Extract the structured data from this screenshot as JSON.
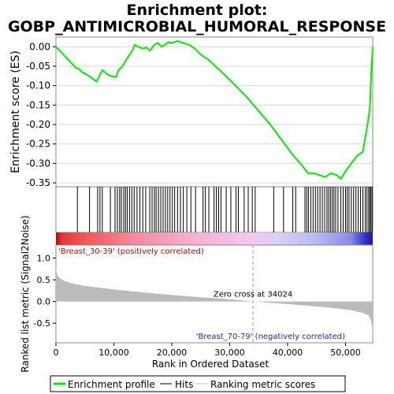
{
  "chart_data": {
    "type": "line",
    "title": "Enrichment plot:",
    "subtitle": "GOBP_ANTIMICROBIAL_HUMORAL_RESPONSE",
    "panels": {
      "enrichment": {
        "ylabel": "Enrichment score (ES)",
        "ylim": [
          -0.36,
          0.025
        ],
        "yticks": [
          0.0,
          -0.05,
          -0.1,
          -0.15,
          -0.2,
          -0.25,
          -0.3,
          -0.35
        ],
        "ytick_labels": [
          "0.00",
          "-0.05",
          "-0.10",
          "-0.15",
          "-0.20",
          "-0.25",
          "-0.30",
          "-0.35"
        ],
        "series": [
          {
            "name": "Enrichment profile",
            "color": "#00ee00",
            "x": [
              0,
              3500,
              3800,
              4500,
              5700,
              6600,
              7000,
              7500,
              8000,
              9000,
              9500,
              10400,
              10800,
              11500,
              12500,
              13200,
              13600,
              14200,
              15000,
              15600,
              16200,
              17000,
              17600,
              18200,
              18800,
              19400,
              20000,
              21000,
              21500,
              22000,
              23000,
              24000,
              25000,
              26500,
              27500,
              29000,
              31000,
              33000,
              35000,
              37000,
              39000,
              41000,
              42500,
              43500,
              44500,
              45500,
              46500,
              47500,
              48500,
              49200,
              50000,
              51000,
              52000,
              53000,
              53800,
              54200,
              54500,
              54700
            ],
            "y": [
              0.0,
              -0.055,
              -0.055,
              -0.065,
              -0.075,
              -0.085,
              -0.09,
              -0.075,
              -0.06,
              -0.072,
              -0.075,
              -0.078,
              -0.06,
              -0.05,
              -0.025,
              -0.01,
              0.005,
              0.0,
              -0.005,
              -0.002,
              -0.01,
              0.005,
              0.01,
              0.0,
              0.005,
              0.012,
              0.01,
              0.015,
              0.012,
              0.01,
              0.005,
              -0.005,
              -0.02,
              -0.035,
              -0.05,
              -0.07,
              -0.1,
              -0.13,
              -0.165,
              -0.2,
              -0.24,
              -0.28,
              -0.305,
              -0.325,
              -0.325,
              -0.33,
              -0.335,
              -0.325,
              -0.33,
              -0.34,
              -0.32,
              -0.3,
              -0.28,
              -0.27,
              -0.2,
              -0.16,
              -0.05,
              0.0
            ]
          }
        ]
      },
      "hits": {
        "name": "Hits",
        "x": [
          3700,
          5800,
          7200,
          7600,
          8000,
          9400,
          10200,
          10600,
          11000,
          11300,
          11700,
          12000,
          12300,
          12700,
          13100,
          13500,
          14000,
          14500,
          15000,
          15500,
          16200,
          16600,
          17000,
          17300,
          17700,
          18100,
          18500,
          18900,
          19300,
          19700,
          20100,
          20500,
          21000,
          21500,
          22000,
          22600,
          23300,
          24100,
          25400,
          25800,
          26400,
          27300,
          27700,
          28100,
          28500,
          29400,
          30200,
          31100,
          31500,
          32500,
          33200,
          33900,
          34400,
          37600,
          39300,
          40900,
          41400,
          43000,
          43300,
          43600,
          44000,
          44400,
          44800,
          45200,
          45600,
          46000,
          46400,
          46800,
          47100,
          47400,
          47700,
          48000,
          48300,
          48700,
          49200,
          49600,
          50000,
          50300,
          50600,
          51000,
          51400,
          51800,
          52200,
          52600,
          53000,
          53400,
          53700,
          54000,
          54200,
          54400,
          54600
        ]
      },
      "metric_bar": {
        "label_positive": "'Breast_30-39' (positively correlated)",
        "label_negative": "'Breast_70-79' (negatively correlated)"
      },
      "ranking": {
        "ylabel": "Ranked list metric (Signal2Noise)",
        "xlabel": "Rank in Ordered Dataset",
        "ylim": [
          -0.95,
          1.3
        ],
        "yticks": [
          1.0,
          0.5,
          0.0,
          -0.5
        ],
        "ytick_labels": [
          "1.0",
          "0.5",
          "0.0",
          "-0.5"
        ],
        "xlim": [
          0,
          54700
        ],
        "xticks": [
          0,
          10000,
          20000,
          30000,
          40000,
          50000
        ],
        "xtick_labels": [
          "0",
          "10,000",
          "20,000",
          "30,000",
          "40,000",
          "50,000"
        ],
        "zero_cross_label": "Zero cross at 34024",
        "zero_cross": 34024,
        "series": [
          {
            "name": "Ranking metric scores",
            "color": "#bbbbbb",
            "x": [
              0,
              100,
              300,
              700,
              1500,
              3000,
              5000,
              8000,
              12000,
              16000,
              20000,
              24000,
              28000,
              31000,
              34024,
              37000,
              40000,
              44000,
              48000,
              51000,
              53000,
              54000,
              54400,
              54600,
              54700
            ],
            "y": [
              0.78,
              0.68,
              0.6,
              0.53,
              0.47,
              0.41,
              0.36,
              0.31,
              0.25,
              0.2,
              0.15,
              0.11,
              0.07,
              0.04,
              0.0,
              -0.03,
              -0.06,
              -0.1,
              -0.15,
              -0.2,
              -0.26,
              -0.32,
              -0.42,
              -0.6,
              -0.85
            ]
          }
        ]
      }
    },
    "legend": {
      "placement": "bottom",
      "items": [
        {
          "label": "Enrichment profile",
          "color": "#00ee00",
          "kind": "line-thick"
        },
        {
          "label": "Hits",
          "color": "#000000",
          "kind": "line"
        },
        {
          "label": "Ranking metric scores",
          "color": "#bbbbbb",
          "kind": "line"
        }
      ]
    }
  }
}
